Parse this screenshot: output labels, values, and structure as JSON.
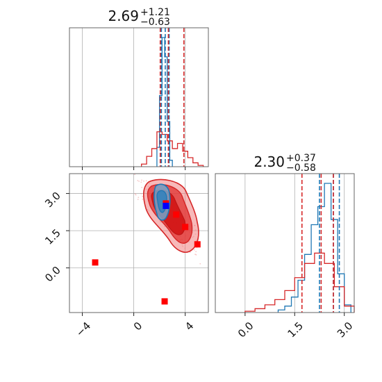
{
  "colors": {
    "blue": "#1f77b4",
    "red": "#d62728",
    "red_fill": "#e31a1c",
    "marker_red": "#ff0000",
    "marker_blue": "#0000ff",
    "grid": "#b0b0b0"
  },
  "chart_data": [
    {
      "type": "histogram",
      "panel": "top-left",
      "title_value": "2.69",
      "title_plus": "+1.21",
      "title_minus": "−0.63",
      "xlim": [
        -5.0,
        5.8
      ],
      "grid": true,
      "xticks": [
        -4,
        0,
        4
      ],
      "series": [
        {
          "color": "#1f77b4",
          "bins_x": [
            1.8,
            2.0,
            2.2,
            2.4,
            2.6,
            2.8,
            3.0
          ],
          "heights": [
            0.15,
            0.55,
            1.0,
            0.85,
            0.35,
            0.05
          ]
        },
        {
          "color": "#d62728",
          "bins_x": [
            0.6,
            1.0,
            1.4,
            1.8,
            2.2,
            2.6,
            3.0,
            3.4,
            3.8,
            4.2,
            4.6,
            5.0,
            5.4
          ],
          "heights": [
            0.02,
            0.08,
            0.14,
            0.27,
            0.25,
            0.2,
            0.14,
            0.18,
            0.12,
            0.07,
            0.03,
            0.01
          ]
        }
      ],
      "quantile_lines": [
        {
          "color": "#1f77b4",
          "values": [
            2.15,
            2.45,
            2.75
          ]
        },
        {
          "color": "#d62728",
          "values": [
            2.06,
            2.69,
            3.9
          ]
        }
      ]
    },
    {
      "type": "scatter-contour",
      "panel": "bottom-left",
      "xlim": [
        -5.0,
        5.8
      ],
      "ylim": [
        -1.8,
        3.8
      ],
      "grid": true,
      "xticks": [
        -4,
        0,
        4
      ],
      "yticks": [
        0.0,
        1.5,
        3.0
      ],
      "xtick_labels": [
        "−4",
        "0",
        "4"
      ],
      "ytick_labels": [
        "0.0",
        "1.5",
        "3.0"
      ],
      "red_markers": [
        {
          "x": 2.5,
          "y": 2.6
        },
        {
          "x": 3.3,
          "y": 2.15
        },
        {
          "x": 4.0,
          "y": 1.65
        },
        {
          "x": 4.95,
          "y": 0.95
        },
        {
          "x": -3.0,
          "y": 0.22
        },
        {
          "x": 2.4,
          "y": -1.35
        }
      ],
      "blue_markers": [
        {
          "x": 2.5,
          "y": 2.5
        }
      ]
    },
    {
      "type": "histogram",
      "panel": "bottom-right",
      "title_value": "2.30",
      "title_plus": "+0.37",
      "title_minus": "−0.58",
      "xlim": [
        -0.9,
        3.3
      ],
      "grid": true,
      "xticks": [
        0.0,
        1.5,
        3.0
      ],
      "xtick_labels": [
        "0.0",
        "1.5",
        "3.0"
      ],
      "series": [
        {
          "color": "#1f77b4",
          "bins_x": [
            1.0,
            1.2,
            1.4,
            1.6,
            1.8,
            2.0,
            2.2,
            2.4,
            2.6,
            2.8,
            3.0,
            3.2
          ],
          "heights": [
            0.02,
            0.05,
            0.12,
            0.25,
            0.45,
            0.68,
            0.82,
            1.0,
            0.72,
            0.3,
            0.06
          ]
        },
        {
          "color": "#d62728",
          "bins_x": [
            0.0,
            0.3,
            0.6,
            0.9,
            1.2,
            1.5,
            1.8,
            2.1,
            2.4,
            2.7,
            3.0,
            3.3
          ],
          "heights": [
            0.01,
            0.03,
            0.06,
            0.1,
            0.17,
            0.27,
            0.38,
            0.46,
            0.38,
            0.2,
            0.05
          ]
        }
      ],
      "quantile_lines": [
        {
          "color": "#1f77b4",
          "values": [
            2.25,
            2.67,
            2.85
          ]
        },
        {
          "color": "#d62728",
          "values": [
            1.72,
            2.3,
            2.67
          ]
        }
      ]
    }
  ]
}
